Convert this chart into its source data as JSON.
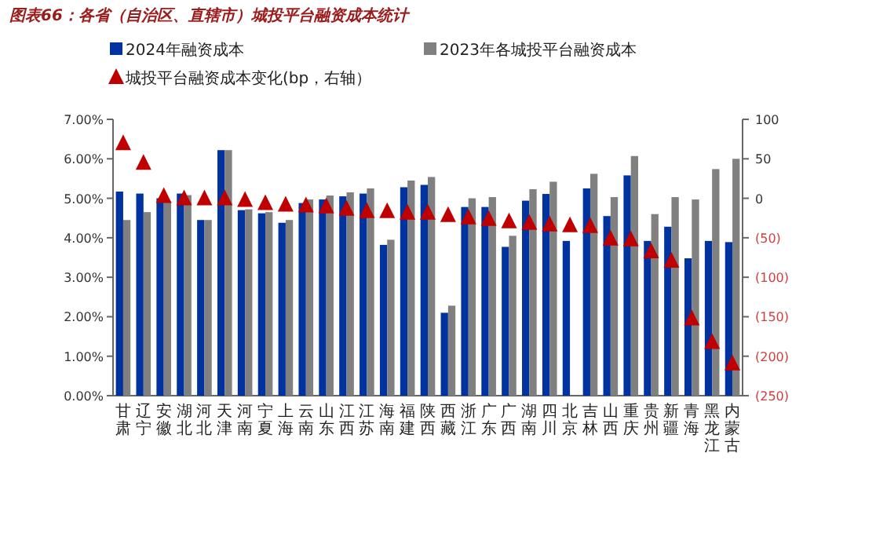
{
  "chart_data": {
    "type": "bar",
    "title": "图表66：各省（自治区、直辖市）城投平台融资成本统计",
    "categories": [
      "甘肃",
      "辽宁",
      "安徽",
      "湖北",
      "河北",
      "天津",
      "河南",
      "宁夏",
      "上海",
      "云南",
      "山东",
      "江西",
      "江苏",
      "海南",
      "福建",
      "陕西",
      "西藏",
      "浙江",
      "广东",
      "广西",
      "湖南",
      "四川",
      "北京",
      "吉林",
      "山西",
      "重庆",
      "贵州",
      "新疆",
      "青海",
      "黑龙江",
      "内蒙古"
    ],
    "series": [
      {
        "name": "2024年融资成本",
        "color": "#0033a0",
        "values": [
          5.17,
          5.12,
          5.0,
          5.12,
          4.45,
          6.22,
          4.7,
          4.62,
          4.38,
          4.88,
          4.97,
          5.05,
          5.12,
          3.82,
          5.28,
          5.34,
          2.1,
          4.78,
          4.78,
          3.77,
          4.94,
          5.11,
          3.92,
          5.25,
          4.55,
          5.58,
          3.92,
          4.28,
          3.48,
          3.92,
          3.89
        ]
      },
      {
        "name": "2023年各城投平台融资成本",
        "color": "#808080",
        "values": [
          4.45,
          4.65,
          4.9,
          5.08,
          4.45,
          6.22,
          4.72,
          4.65,
          4.45,
          4.97,
          5.07,
          5.15,
          5.25,
          3.95,
          5.45,
          5.54,
          2.28,
          5.0,
          5.03,
          4.05,
          5.23,
          5.42,
          null,
          5.62,
          5.03,
          6.07,
          4.6,
          5.03,
          4.97,
          5.74,
          6.0
        ]
      },
      {
        "name": "城投平台融资成本变化(bp，右轴）",
        "color": "#c00000",
        "type": "scatter",
        "axis": "y2",
        "marker": "triangle",
        "values": [
          70,
          45,
          3,
          0,
          0,
          0,
          -2,
          -6,
          -8,
          -9,
          -10,
          -13,
          -16,
          -16,
          -18,
          -18,
          -21,
          -24,
          -26,
          -29,
          -31,
          -33,
          -34,
          -35,
          -51,
          -52,
          -67,
          -79,
          -152,
          -182,
          -209
        ]
      }
    ],
    "ylim": [
      0,
      7
    ],
    "yticks": [
      {
        "value": 0,
        "label": "0.00%"
      },
      {
        "value": 1,
        "label": "1.00%"
      },
      {
        "value": 2,
        "label": "2.00%"
      },
      {
        "value": 3,
        "label": "3.00%"
      },
      {
        "value": 4,
        "label": "4.00%"
      },
      {
        "value": 5,
        "label": "5.00%"
      },
      {
        "value": 6,
        "label": "6.00%"
      },
      {
        "value": 7,
        "label": "7.00%"
      }
    ],
    "y2lim": [
      -250,
      100
    ],
    "y2ticks": [
      {
        "value": -250,
        "label": "(250)"
      },
      {
        "value": -200,
        "label": "(200)"
      },
      {
        "value": -150,
        "label": "(150)"
      },
      {
        "value": -100,
        "label": "(100)"
      },
      {
        "value": -50,
        "label": "(50)"
      },
      0,
      50,
      100
    ],
    "legend": "top"
  }
}
